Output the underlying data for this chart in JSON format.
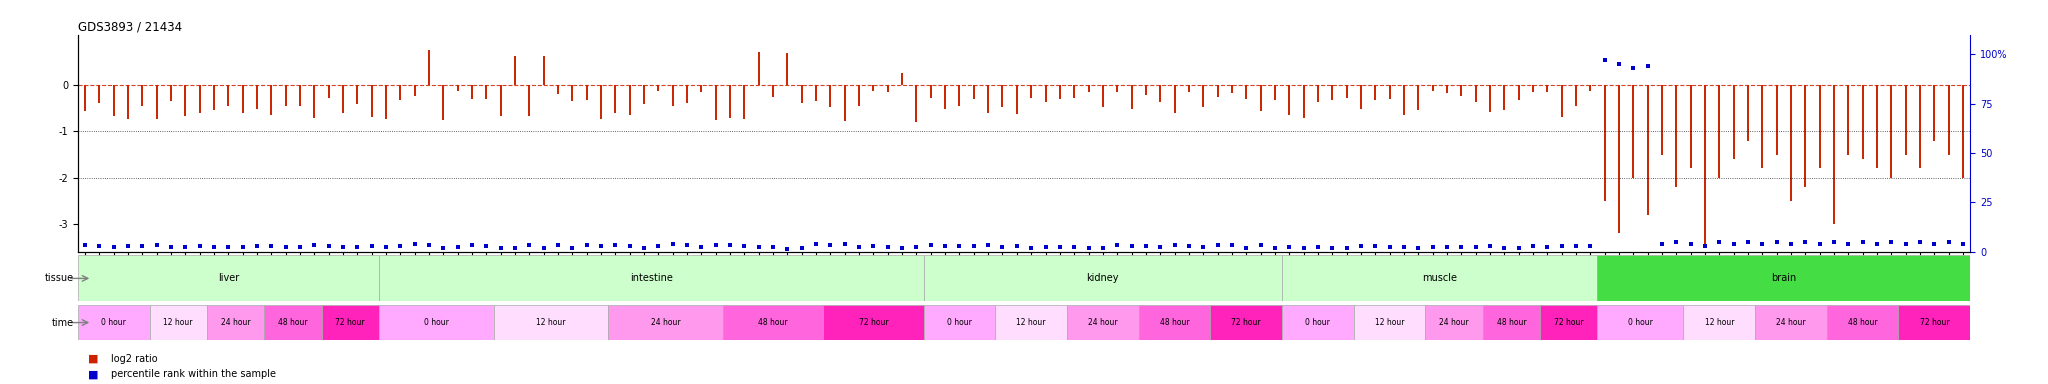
{
  "title": "GDS3893 / 21434",
  "tissue_segments": [
    {
      "name": "liver",
      "count": 21,
      "color": "#ccffcc"
    },
    {
      "name": "intestine",
      "count": 38,
      "color": "#ccffcc"
    },
    {
      "name": "kidney",
      "count": 25,
      "color": "#ccffcc"
    },
    {
      "name": "muscle",
      "count": 22,
      "color": "#ccffcc"
    },
    {
      "name": "brain",
      "count": 26,
      "color": "#44dd44"
    }
  ],
  "time_names": [
    "0 hour",
    "12 hour",
    "24 hour",
    "48 hour",
    "72 hour"
  ],
  "time_palette": [
    "#ffaaff",
    "#ffddff",
    "#ff99ee",
    "#ff66dd",
    "#ff22bb"
  ],
  "log2_color": "#cc2200",
  "percentile_color": "#0000cc",
  "hline_values": [
    -1.0,
    -2.0
  ],
  "ylim_log2": [
    -3.6,
    1.1
  ],
  "ylim_pct": [
    0,
    110
  ],
  "background_color": "#ffffff"
}
